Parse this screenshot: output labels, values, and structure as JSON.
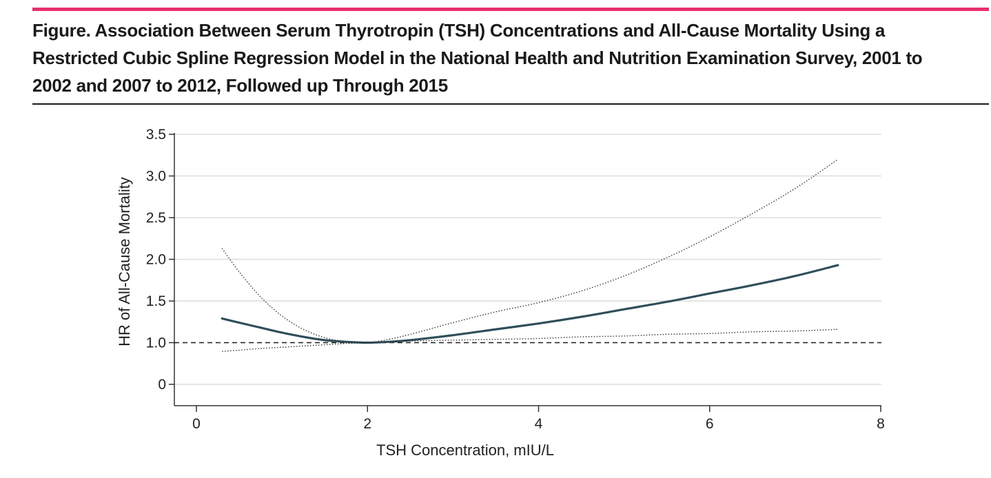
{
  "figure": {
    "title": "Figure. Association Between Serum Thyrotropin (TSH) Concentrations and All-Cause Mortality Using a Restricted Cubic Spline Regression Model in the National Health and Nutrition Examination Survey, 2001 to 2002 and 2007 to 2012, Followed up Through 2015",
    "accent_color": "#e8306d"
  },
  "chart_data": {
    "type": "line",
    "title": "",
    "xlabel": "TSH Concentration, mIU/L",
    "ylabel": "HR of All-Cause Mortality",
    "xlim": [
      0,
      8
    ],
    "ylim": [
      -0.25,
      3.5
    ],
    "x_ticks": [
      0,
      2,
      4,
      6,
      8
    ],
    "y_ticks": [
      0,
      1.0,
      1.5,
      2.0,
      2.5,
      3.0,
      3.5
    ],
    "y_tick_labels": [
      "0",
      "1.0",
      "1.5",
      "2.0",
      "2.5",
      "3.0",
      "3.5"
    ],
    "grid": "horizontal",
    "reference_line": {
      "y": 1.0,
      "style": "dashed"
    },
    "series": [
      {
        "role": "estimate",
        "style": "solid",
        "color": "#2f4f5a",
        "x": [
          0.3,
          0.5,
          0.75,
          1.0,
          1.25,
          1.5,
          1.75,
          2.0,
          2.25,
          2.5,
          3.0,
          3.5,
          4.0,
          4.5,
          5.0,
          5.5,
          6.0,
          6.5,
          7.0,
          7.5
        ],
        "y": [
          1.29,
          1.24,
          1.18,
          1.12,
          1.07,
          1.03,
          1.01,
          1.0,
          1.01,
          1.03,
          1.09,
          1.16,
          1.23,
          1.31,
          1.4,
          1.49,
          1.59,
          1.69,
          1.8,
          1.93
        ]
      },
      {
        "role": "upper CI",
        "style": "dotted",
        "color": "#333333",
        "x": [
          0.3,
          0.5,
          0.75,
          1.0,
          1.25,
          1.5,
          1.75,
          2.0,
          2.25,
          2.5,
          3.0,
          3.5,
          4.0,
          4.5,
          5.0,
          5.5,
          6.0,
          6.5,
          7.0,
          7.5
        ],
        "y": [
          2.13,
          1.85,
          1.55,
          1.32,
          1.16,
          1.06,
          1.01,
          1.0,
          1.04,
          1.1,
          1.24,
          1.37,
          1.48,
          1.62,
          1.8,
          2.02,
          2.27,
          2.55,
          2.85,
          3.2
        ]
      },
      {
        "role": "lower CI",
        "style": "dotted",
        "color": "#333333",
        "x": [
          0.3,
          0.5,
          0.75,
          1.0,
          1.25,
          1.5,
          1.75,
          2.0,
          2.25,
          2.5,
          3.0,
          3.5,
          4.0,
          4.5,
          5.0,
          5.5,
          6.0,
          6.5,
          7.0,
          7.5
        ],
        "y": [
          0.79,
          0.82,
          0.86,
          0.89,
          0.92,
          0.95,
          0.98,
          1.0,
          1.01,
          1.02,
          1.03,
          1.04,
          1.05,
          1.07,
          1.08,
          1.1,
          1.11,
          1.13,
          1.14,
          1.16
        ]
      }
    ]
  }
}
